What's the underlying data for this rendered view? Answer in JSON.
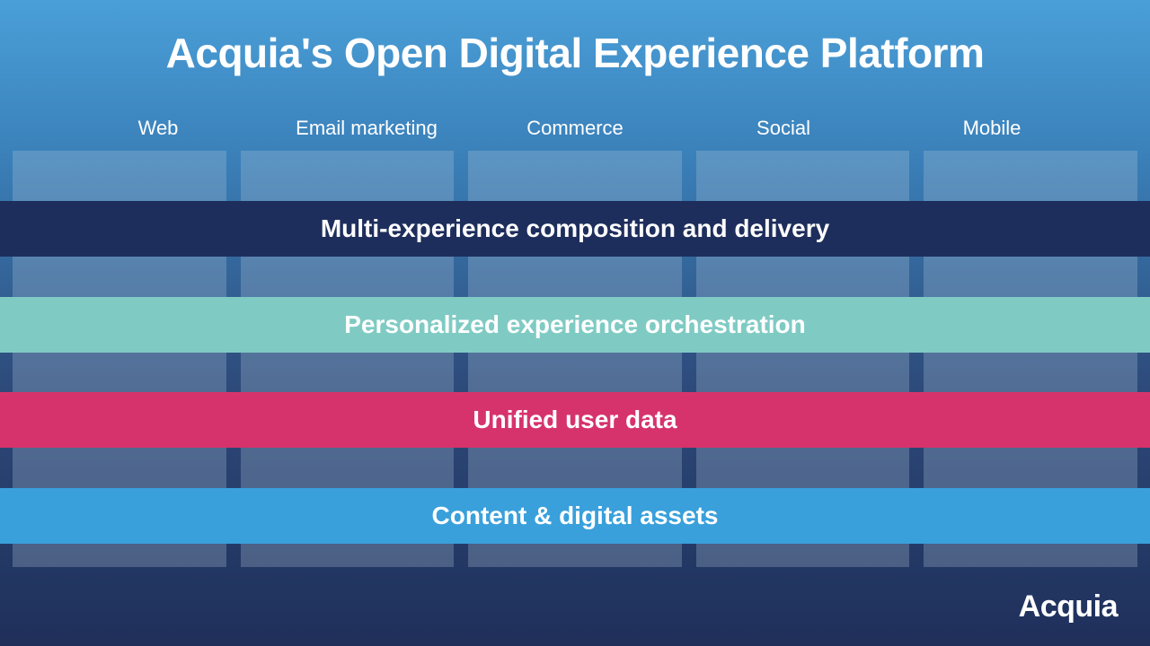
{
  "title": "Acquia's Open Digital Experience Platform",
  "title_fontsize": 46,
  "background_gradient": {
    "top": "#4a9fd8",
    "mid1": "#3a7fb8",
    "mid2": "#2d4a7a",
    "bottom": "#1f2f5a"
  },
  "channels": {
    "label_color": "#ffffff",
    "label_fontsize": 22,
    "items": [
      "Web",
      "Email marketing",
      "Commerce",
      "Social",
      "Mobile"
    ]
  },
  "columns": {
    "count": 5,
    "fill": "rgba(180,200,220,0.28)"
  },
  "layers": [
    {
      "label": "Multi-experience composition and delivery",
      "color": "#1e2e5c"
    },
    {
      "label": "Personalized experience orchestration",
      "color": "#7fcbc4"
    },
    {
      "label": "Unified user data",
      "color": "#d6336c"
    },
    {
      "label": "Content & digital assets",
      "color": "#39a0db"
    }
  ],
  "layer_fontsize": 28,
  "layer_text_color": "#ffffff",
  "brand": "Acquia",
  "brand_color": "#ffffff",
  "brand_fontsize": 34
}
